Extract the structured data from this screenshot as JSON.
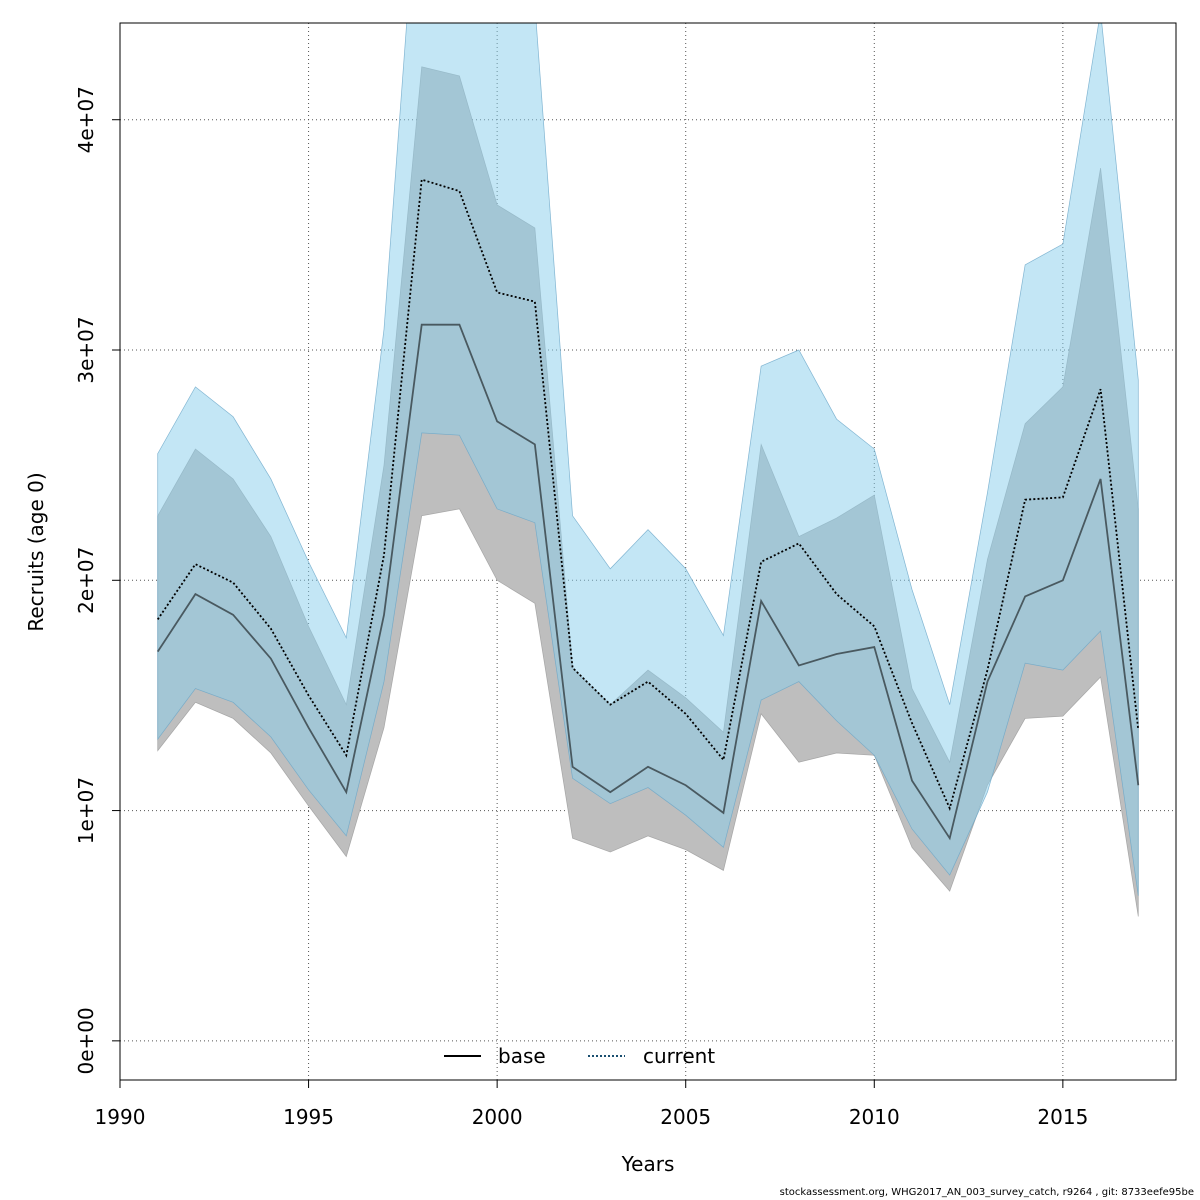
{
  "chart_data": {
    "type": "line",
    "xlabel": "Years",
    "ylabel": "Recruits (age 0)",
    "xlim": [
      1990,
      2018
    ],
    "ylim": [
      -1700000,
      44200000
    ],
    "x_ticks": [
      1990,
      1995,
      2000,
      2005,
      2010,
      2015
    ],
    "x_tick_labels": [
      "1990",
      "1995",
      "2000",
      "2005",
      "2010",
      "2015"
    ],
    "y_ticks": [
      0,
      10000000,
      20000000,
      30000000,
      40000000
    ],
    "y_tick_labels": [
      "0e+00",
      "1e+07",
      "2e+07",
      "3e+07",
      "4e+07"
    ],
    "grid": true,
    "legend_position": "bottom-center",
    "x": [
      1991,
      1992,
      1993,
      1994,
      1995,
      1996,
      1997,
      1998,
      1999,
      2000,
      2001,
      2002,
      2003,
      2004,
      2005,
      2006,
      2007,
      2008,
      2009,
      2010,
      2011,
      2012,
      2013,
      2014,
      2015,
      2016,
      2017
    ],
    "series": [
      {
        "name": "base",
        "line_style": "solid",
        "line_color": "#000000",
        "band_color": "#bebebe",
        "values": [
          16900000,
          19400000,
          18500000,
          16600000,
          13600000,
          10800000,
          18500000,
          31100000,
          31100000,
          26900000,
          25900000,
          11900000,
          10800000,
          11900000,
          11100000,
          9900000,
          19100000,
          16300000,
          16800000,
          17100000,
          11300000,
          8800000,
          15600000,
          19300000,
          20000000,
          24400000,
          11100000
        ],
        "lower": [
          12600000,
          14700000,
          14000000,
          12500000,
          10200000,
          8000000,
          13600000,
          22800000,
          23100000,
          20000000,
          19000000,
          8800000,
          8200000,
          8900000,
          8300000,
          7400000,
          14200000,
          12100000,
          12500000,
          12400000,
          8400000,
          6500000,
          11100000,
          14000000,
          14100000,
          15800000,
          5400000
        ],
        "upper": [
          22800000,
          25700000,
          24400000,
          21900000,
          18000000,
          14600000,
          25000000,
          42300000,
          41900000,
          36300000,
          35300000,
          16200000,
          14600000,
          16100000,
          14900000,
          13400000,
          25900000,
          21900000,
          22700000,
          23700000,
          15300000,
          12100000,
          20900000,
          26800000,
          28400000,
          37900000,
          23100000
        ]
      },
      {
        "name": "current",
        "line_style": "dotted",
        "line_color": "#000000",
        "band_color": "#87ceeb",
        "values": [
          18300000,
          20700000,
          19900000,
          17900000,
          15000000,
          12400000,
          21100000,
          37400000,
          36900000,
          32500000,
          32100000,
          16200000,
          14600000,
          15600000,
          14200000,
          12200000,
          20800000,
          21600000,
          19400000,
          18000000,
          13800000,
          10100000,
          16100000,
          23500000,
          23600000,
          28300000,
          13500000
        ],
        "lower": [
          13100000,
          15300000,
          14700000,
          13200000,
          10900000,
          8900000,
          15600000,
          26400000,
          26300000,
          23100000,
          22500000,
          11400000,
          10300000,
          11000000,
          9800000,
          8400000,
          14800000,
          15600000,
          13900000,
          12400000,
          9200000,
          7200000,
          10800000,
          16400000,
          16100000,
          17800000,
          6300000
        ],
        "upper": [
          25500000,
          28400000,
          27100000,
          24400000,
          20800000,
          17500000,
          30900000,
          53000000,
          53000000,
          45600000,
          45000000,
          22800000,
          20500000,
          22200000,
          20500000,
          17600000,
          29300000,
          30000000,
          27000000,
          25700000,
          19600000,
          14600000,
          23800000,
          33700000,
          34600000,
          44700000,
          28700000
        ]
      }
    ]
  },
  "footer": "stockassessment.org, WHG2017_AN_003_survey_catch, r9264 , git: 8733eefe95be"
}
